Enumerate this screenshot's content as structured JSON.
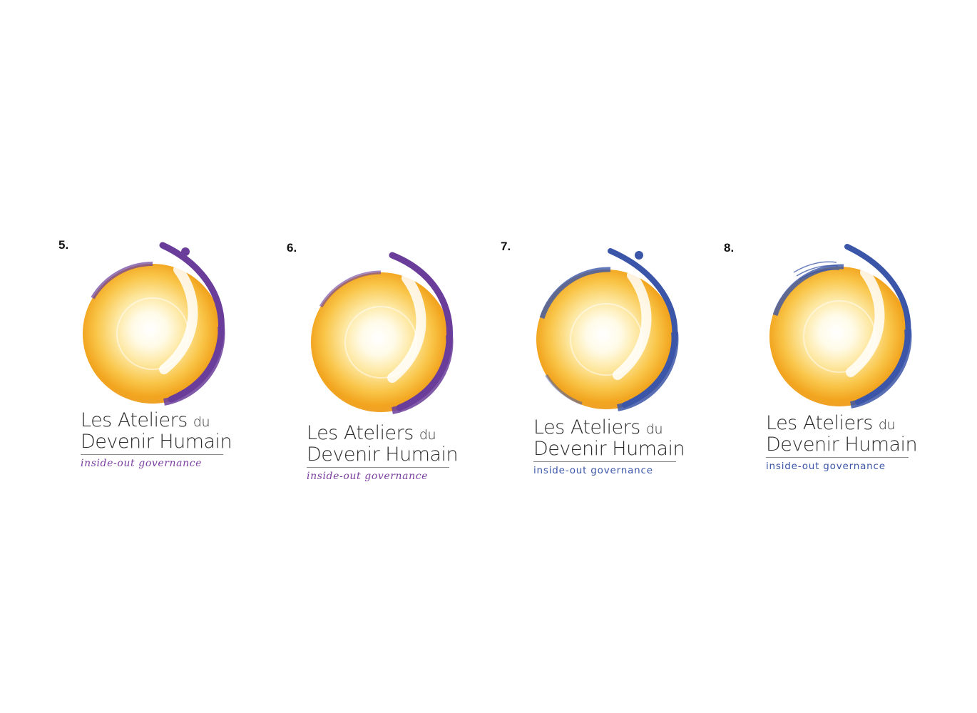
{
  "logo_text": {
    "line1_main": "Les Ateliers",
    "line1_small": "du",
    "line2": "Devenir Humain",
    "tagline": "inside-out governance"
  },
  "variants": [
    {
      "number": "5.",
      "accent": "#6a3d9a",
      "tag_color": "#7a3fa0",
      "has_dot": true,
      "has_arcs": false
    },
    {
      "number": "6.",
      "accent": "#6a3d9a",
      "tag_color": "#7a3fa0",
      "has_dot": false,
      "has_arcs": false
    },
    {
      "number": "7.",
      "accent": "#3b56a8",
      "tag_color": "#3b56a8",
      "has_dot": true,
      "has_arcs": false
    },
    {
      "number": "8.",
      "accent": "#3b56a8",
      "tag_color": "#3b56a8",
      "has_dot": false,
      "has_arcs": true
    }
  ]
}
